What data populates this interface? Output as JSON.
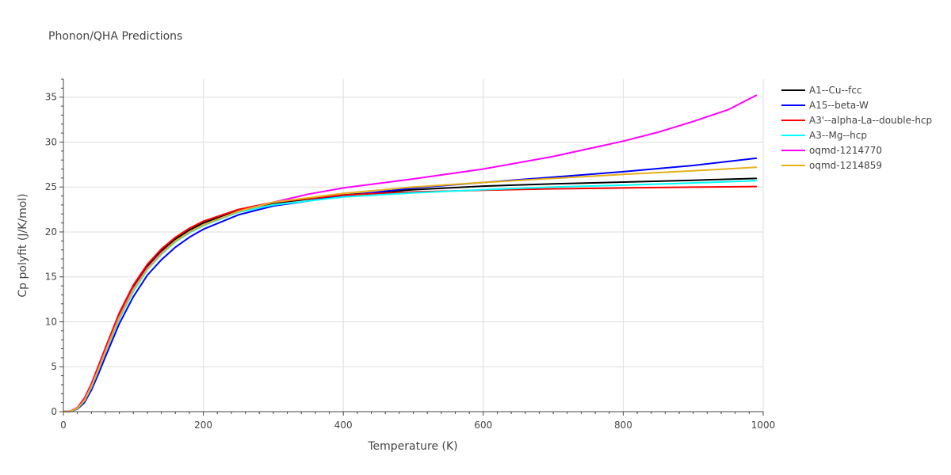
{
  "chart_data": {
    "type": "line",
    "title": "Phonon/QHA Predictions",
    "xlabel": "Temperature (K)",
    "ylabel": "Cp polyfit (J/K/mol)",
    "xlim": [
      0,
      1000
    ],
    "ylim": [
      0,
      37
    ],
    "xticks": [
      0,
      200,
      400,
      600,
      800,
      1000
    ],
    "yticks": [
      0,
      5,
      10,
      15,
      20,
      25,
      30,
      35
    ],
    "grid": true,
    "legend_position": "right",
    "series": [
      {
        "name": "A1--Cu--fcc",
        "color": "#000000",
        "x": [
          0,
          10,
          20,
          30,
          40,
          50,
          60,
          80,
          100,
          120,
          140,
          160,
          180,
          200,
          250,
          300,
          400,
          500,
          600,
          700,
          800,
          900,
          990
        ],
        "y": [
          0,
          0.05,
          0.4,
          1.4,
          3.0,
          5.0,
          7.0,
          10.8,
          13.9,
          16.2,
          17.9,
          19.2,
          20.2,
          21.0,
          22.4,
          23.2,
          24.1,
          24.7,
          25.1,
          25.35,
          25.55,
          25.75,
          25.95
        ]
      },
      {
        "name": "A15--beta-W",
        "color": "#0000ff",
        "x": [
          0,
          10,
          20,
          30,
          40,
          50,
          60,
          80,
          100,
          120,
          140,
          160,
          180,
          200,
          250,
          300,
          400,
          500,
          600,
          700,
          800,
          900,
          990
        ],
        "y": [
          0,
          0.03,
          0.3,
          1.0,
          2.4,
          4.2,
          6.1,
          9.8,
          12.8,
          15.2,
          16.9,
          18.3,
          19.4,
          20.3,
          21.9,
          22.9,
          24.0,
          24.9,
          25.5,
          26.1,
          26.7,
          27.4,
          28.2
        ]
      },
      {
        "name": "A3'--alpha-La--double-hcp",
        "color": "#ff0000",
        "x": [
          0,
          10,
          20,
          30,
          40,
          50,
          60,
          80,
          100,
          120,
          140,
          160,
          180,
          200,
          250,
          300,
          400,
          500,
          600,
          700,
          800,
          900,
          990
        ],
        "y": [
          0,
          0.06,
          0.45,
          1.5,
          3.1,
          5.1,
          7.1,
          11.0,
          14.1,
          16.4,
          18.1,
          19.4,
          20.4,
          21.2,
          22.5,
          23.3,
          24.1,
          24.45,
          24.65,
          24.8,
          24.9,
          24.98,
          25.05
        ]
      },
      {
        "name": "A3--Mg--hcp",
        "color": "#00ffff",
        "x": [
          0,
          10,
          20,
          30,
          40,
          50,
          60,
          80,
          100,
          120,
          140,
          160,
          180,
          200,
          250,
          300,
          400,
          500,
          600,
          700,
          800,
          900,
          990
        ],
        "y": [
          0,
          0.04,
          0.35,
          1.2,
          2.7,
          4.6,
          6.6,
          10.3,
          13.4,
          15.8,
          17.5,
          18.9,
          19.9,
          20.7,
          22.2,
          23.0,
          23.9,
          24.35,
          24.7,
          25.0,
          25.2,
          25.45,
          25.7
        ]
      },
      {
        "name": "oqmd-1214770",
        "color": "#ff00ff",
        "x": [
          0,
          10,
          20,
          30,
          40,
          50,
          60,
          80,
          100,
          120,
          140,
          160,
          180,
          200,
          250,
          300,
          350,
          400,
          500,
          600,
          700,
          800,
          850,
          900,
          950,
          990
        ],
        "y": [
          0,
          0.05,
          0.4,
          1.3,
          2.9,
          4.8,
          6.8,
          10.6,
          13.7,
          16.0,
          17.7,
          19.0,
          20.0,
          20.8,
          22.3,
          23.3,
          24.2,
          24.9,
          25.9,
          27.0,
          28.4,
          30.1,
          31.1,
          32.3,
          33.6,
          35.2
        ]
      },
      {
        "name": "oqmd-1214859",
        "color": "#e6b019",
        "x": [
          0,
          10,
          20,
          30,
          40,
          50,
          60,
          80,
          100,
          120,
          140,
          160,
          180,
          200,
          250,
          300,
          400,
          500,
          600,
          700,
          800,
          900,
          990
        ],
        "y": [
          0,
          0.04,
          0.38,
          1.25,
          2.8,
          4.7,
          6.7,
          10.5,
          13.6,
          15.9,
          17.6,
          19.0,
          20.0,
          20.8,
          22.3,
          23.3,
          24.3,
          25.0,
          25.5,
          25.95,
          26.4,
          26.8,
          27.2
        ]
      }
    ]
  }
}
